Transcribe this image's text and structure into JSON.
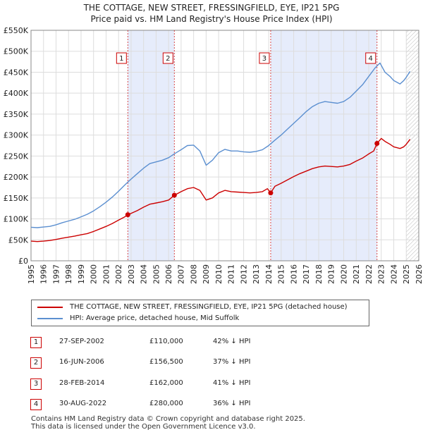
{
  "chart_data": {
    "type": "line",
    "title": "THE COTTAGE, NEW STREET, FRESSINGFIELD, EYE, IP21 5PG",
    "subtitle": "Price paid vs. HM Land Registry's House Price Index (HPI)",
    "xlim": [
      1995,
      2026
    ],
    "ylim": [
      0,
      550000
    ],
    "x_ticks": [
      1995,
      1996,
      1997,
      1998,
      1999,
      2000,
      2001,
      2002,
      2003,
      2004,
      2005,
      2006,
      2007,
      2008,
      2009,
      2010,
      2011,
      2012,
      2013,
      2014,
      2015,
      2016,
      2017,
      2018,
      2019,
      2020,
      2021,
      2022,
      2023,
      2024,
      2025,
      2026
    ],
    "y_ticks": [
      0,
      50000,
      100000,
      150000,
      200000,
      250000,
      300000,
      350000,
      400000,
      450000,
      500000,
      550000
    ],
    "y_tick_labels": [
      "£0",
      "£50K",
      "£100K",
      "£150K",
      "£200K",
      "£250K",
      "£300K",
      "£350K",
      "£400K",
      "£450K",
      "£500K",
      "£550K"
    ],
    "grid": true,
    "forecast_hatch_from": 2025.0,
    "shaded_spans": [
      [
        2002.74,
        2006.46
      ],
      [
        2014.16,
        2022.66
      ]
    ],
    "colors": {
      "property": "#cc0000",
      "hpi": "#5b8fd0",
      "span": "#e6ecfb",
      "grid": "#dddddd"
    },
    "series": [
      {
        "name": "THE COTTAGE, NEW STREET, FRESSINGFIELD, EYE, IP21 5PG (detached house)",
        "color": "#cc0000",
        "points": [
          [
            1995.0,
            47000
          ],
          [
            1995.5,
            46000
          ],
          [
            1996.0,
            47000
          ],
          [
            1996.5,
            48500
          ],
          [
            1997.0,
            51000
          ],
          [
            1997.5,
            54000
          ],
          [
            1998.0,
            56500
          ],
          [
            1998.5,
            59000
          ],
          [
            1999.0,
            62000
          ],
          [
            1999.5,
            65000
          ],
          [
            2000.0,
            70000
          ],
          [
            2000.5,
            76000
          ],
          [
            2001.0,
            82000
          ],
          [
            2001.5,
            89000
          ],
          [
            2002.0,
            97000
          ],
          [
            2002.5,
            105000
          ],
          [
            2002.74,
            110000
          ],
          [
            2003.0,
            113000
          ],
          [
            2003.5,
            120000
          ],
          [
            2004.0,
            128000
          ],
          [
            2004.5,
            135000
          ],
          [
            2005.0,
            138000
          ],
          [
            2005.5,
            141000
          ],
          [
            2006.0,
            145000
          ],
          [
            2006.46,
            156500
          ],
          [
            2007.0,
            165000
          ],
          [
            2007.5,
            172000
          ],
          [
            2008.0,
            175000
          ],
          [
            2008.5,
            168000
          ],
          [
            2009.0,
            145000
          ],
          [
            2009.5,
            150000
          ],
          [
            2010.0,
            162000
          ],
          [
            2010.5,
            168000
          ],
          [
            2011.0,
            165000
          ],
          [
            2011.5,
            164000
          ],
          [
            2012.0,
            163000
          ],
          [
            2012.5,
            162000
          ],
          [
            2013.0,
            163000
          ],
          [
            2013.5,
            165000
          ],
          [
            2013.9,
            172000
          ],
          [
            2014.16,
            162000
          ],
          [
            2014.5,
            178000
          ],
          [
            2015.0,
            185000
          ],
          [
            2015.5,
            193000
          ],
          [
            2016.0,
            201000
          ],
          [
            2016.5,
            208000
          ],
          [
            2017.0,
            214000
          ],
          [
            2017.5,
            220000
          ],
          [
            2018.0,
            224000
          ],
          [
            2018.5,
            226000
          ],
          [
            2019.0,
            225000
          ],
          [
            2019.5,
            224000
          ],
          [
            2020.0,
            226000
          ],
          [
            2020.5,
            230000
          ],
          [
            2021.0,
            238000
          ],
          [
            2021.5,
            245000
          ],
          [
            2022.0,
            255000
          ],
          [
            2022.4,
            262000
          ],
          [
            2022.66,
            280000
          ],
          [
            2023.0,
            292000
          ],
          [
            2023.3,
            285000
          ],
          [
            2023.7,
            278000
          ],
          [
            2024.0,
            272000
          ],
          [
            2024.5,
            268000
          ],
          [
            2024.8,
            272000
          ],
          [
            2025.0,
            278000
          ],
          [
            2025.3,
            290000
          ]
        ]
      },
      {
        "name": "HPI: Average price, detached house, Mid Suffolk",
        "color": "#5b8fd0",
        "points": [
          [
            1995.0,
            80000
          ],
          [
            1995.5,
            79000
          ],
          [
            1996.0,
            80500
          ],
          [
            1996.5,
            82000
          ],
          [
            1997.0,
            86000
          ],
          [
            1997.5,
            91000
          ],
          [
            1998.0,
            95000
          ],
          [
            1998.5,
            99000
          ],
          [
            1999.0,
            105000
          ],
          [
            1999.5,
            111000
          ],
          [
            2000.0,
            119000
          ],
          [
            2000.5,
            129000
          ],
          [
            2001.0,
            140000
          ],
          [
            2001.5,
            152000
          ],
          [
            2002.0,
            166000
          ],
          [
            2002.5,
            181000
          ],
          [
            2003.0,
            195000
          ],
          [
            2003.5,
            208000
          ],
          [
            2004.0,
            221000
          ],
          [
            2004.5,
            232000
          ],
          [
            2005.0,
            236000
          ],
          [
            2005.5,
            240000
          ],
          [
            2006.0,
            246000
          ],
          [
            2006.5,
            256000
          ],
          [
            2007.0,
            265000
          ],
          [
            2007.5,
            275000
          ],
          [
            2008.0,
            276000
          ],
          [
            2008.5,
            262000
          ],
          [
            2009.0,
            228000
          ],
          [
            2009.5,
            240000
          ],
          [
            2010.0,
            258000
          ],
          [
            2010.5,
            266000
          ],
          [
            2011.0,
            262000
          ],
          [
            2011.5,
            262000
          ],
          [
            2012.0,
            260000
          ],
          [
            2012.5,
            259000
          ],
          [
            2013.0,
            261000
          ],
          [
            2013.5,
            265000
          ],
          [
            2014.0,
            275000
          ],
          [
            2014.5,
            288000
          ],
          [
            2015.0,
            300000
          ],
          [
            2015.5,
            314000
          ],
          [
            2016.0,
            328000
          ],
          [
            2016.5,
            342000
          ],
          [
            2017.0,
            356000
          ],
          [
            2017.5,
            368000
          ],
          [
            2018.0,
            376000
          ],
          [
            2018.5,
            380000
          ],
          [
            2019.0,
            378000
          ],
          [
            2019.5,
            376000
          ],
          [
            2020.0,
            380000
          ],
          [
            2020.5,
            390000
          ],
          [
            2021.0,
            405000
          ],
          [
            2021.5,
            420000
          ],
          [
            2022.0,
            440000
          ],
          [
            2022.5,
            460000
          ],
          [
            2022.9,
            472000
          ],
          [
            2023.3,
            450000
          ],
          [
            2023.7,
            440000
          ],
          [
            2024.0,
            430000
          ],
          [
            2024.5,
            422000
          ],
          [
            2024.8,
            430000
          ],
          [
            2025.0,
            438000
          ],
          [
            2025.3,
            452000
          ]
        ]
      }
    ],
    "annotations": [
      {
        "label": "1",
        "x": 2002.74,
        "y": 110000
      },
      {
        "label": "2",
        "x": 2006.46,
        "y": 156500
      },
      {
        "label": "3",
        "x": 2014.16,
        "y": 162000
      },
      {
        "label": "4",
        "x": 2022.66,
        "y": 280000
      }
    ]
  },
  "legend": [
    {
      "label": "THE COTTAGE, NEW STREET, FRESSINGFIELD, EYE, IP21 5PG (detached house)",
      "color": "#cc0000"
    },
    {
      "label": "HPI: Average price, detached house, Mid Suffolk",
      "color": "#5b8fd0"
    }
  ],
  "sales": [
    {
      "num": "1",
      "date": "27-SEP-2002",
      "price": "£110,000",
      "hpi": "42% ↓ HPI"
    },
    {
      "num": "2",
      "date": "16-JUN-2006",
      "price": "£156,500",
      "hpi": "37% ↓ HPI"
    },
    {
      "num": "3",
      "date": "28-FEB-2014",
      "price": "£162,000",
      "hpi": "41% ↓ HPI"
    },
    {
      "num": "4",
      "date": "30-AUG-2022",
      "price": "£280,000",
      "hpi": "36% ↓ HPI"
    }
  ],
  "footer": {
    "line1": "Contains HM Land Registry data © Crown copyright and database right 2025.",
    "line2": "This data is licensed under the Open Government Licence v3.0."
  }
}
